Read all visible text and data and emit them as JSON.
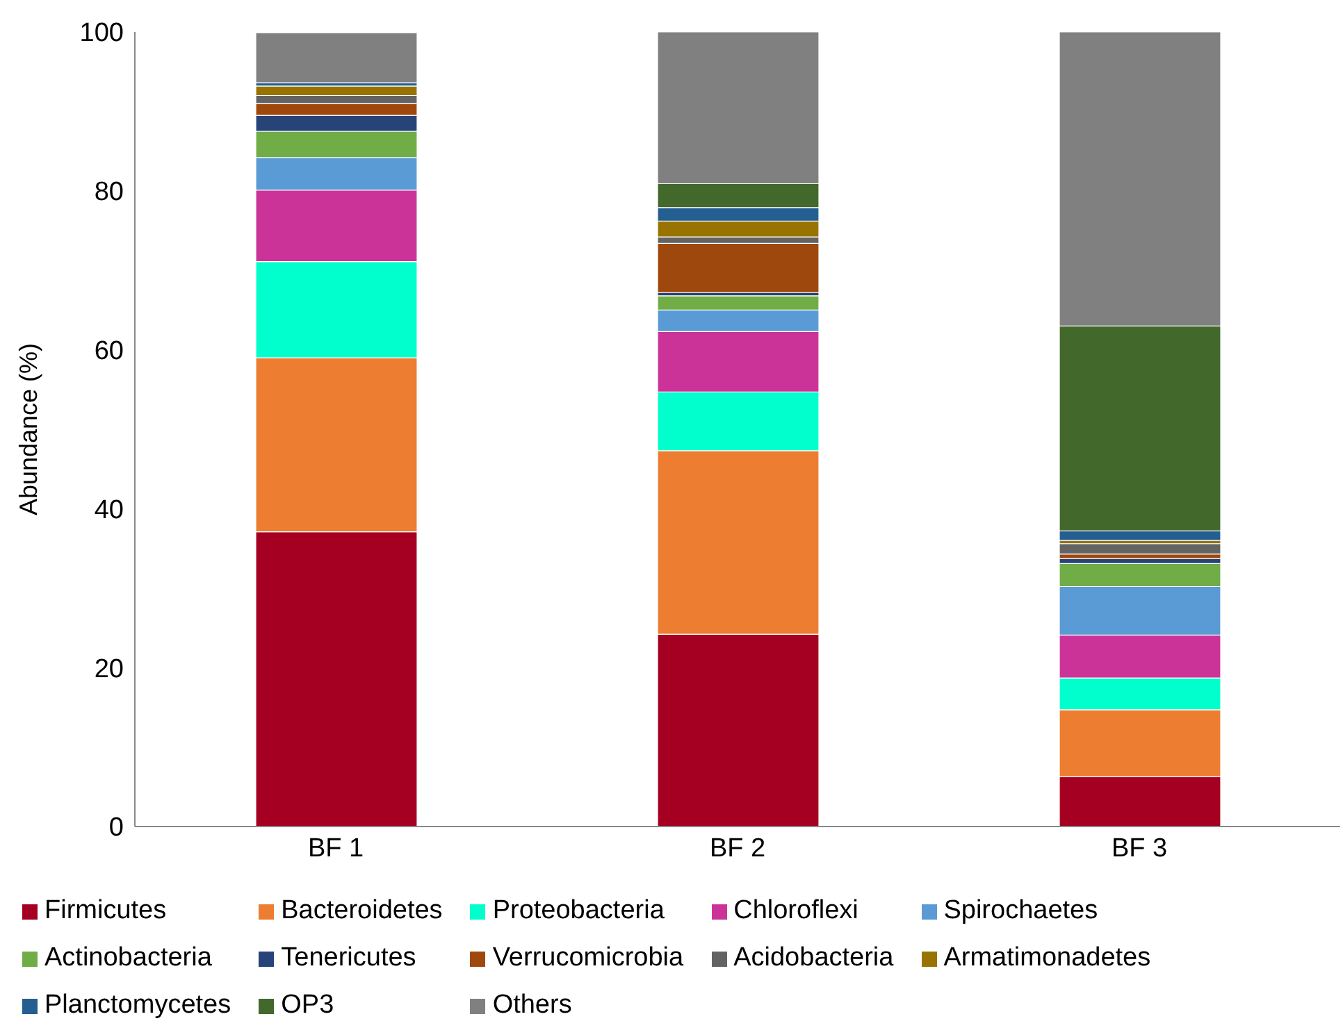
{
  "chart_data": {
    "type": "bar",
    "stacked": true,
    "ylabel": "Abundance (%)",
    "categories": [
      "BF 1",
      "BF 2",
      "BF 3"
    ],
    "ylim": [
      0,
      100
    ],
    "yticks": [
      0,
      20,
      40,
      60,
      80,
      100
    ],
    "grid": false,
    "legend": "bottom",
    "series": [
      {
        "name": "Firmicutes",
        "color": "#a50021",
        "values": [
          37.1,
          24.2,
          6.3
        ]
      },
      {
        "name": "Bacteroidetes",
        "color": "#ed7d31",
        "values": [
          21.9,
          23.1,
          8.4
        ]
      },
      {
        "name": "Proteobacteria",
        "color": "#00ffcc",
        "values": [
          12.1,
          7.4,
          4.0
        ]
      },
      {
        "name": "Chloroflexi",
        "color": "#cc3399",
        "values": [
          9.0,
          7.6,
          5.4
        ]
      },
      {
        "name": "Spirochaetes",
        "color": "#5b9bd5",
        "values": [
          4.1,
          2.7,
          6.1
        ]
      },
      {
        "name": "Actinobacteria",
        "color": "#70ad47",
        "values": [
          3.3,
          1.8,
          2.9
        ]
      },
      {
        "name": "Tenericutes",
        "color": "#264478",
        "values": [
          2.0,
          0.4,
          0.6
        ]
      },
      {
        "name": "Verrucomicrobia",
        "color": "#9e480e",
        "values": [
          1.5,
          6.2,
          0.6
        ]
      },
      {
        "name": "Acidobacteria",
        "color": "#636363",
        "values": [
          1.0,
          0.8,
          1.3
        ]
      },
      {
        "name": "Armatimonadetes",
        "color": "#997300",
        "values": [
          1.2,
          2.0,
          0.4
        ]
      },
      {
        "name": "Planctomycetes",
        "color": "#255e91",
        "values": [
          0.4,
          1.7,
          1.2
        ]
      },
      {
        "name": "OP3",
        "color": "#43682b",
        "values": [
          null,
          3.0,
          25.8
        ]
      },
      {
        "name": "Others",
        "color": "#808080",
        "values": [
          6.3,
          19.1,
          37.1
        ]
      }
    ]
  }
}
